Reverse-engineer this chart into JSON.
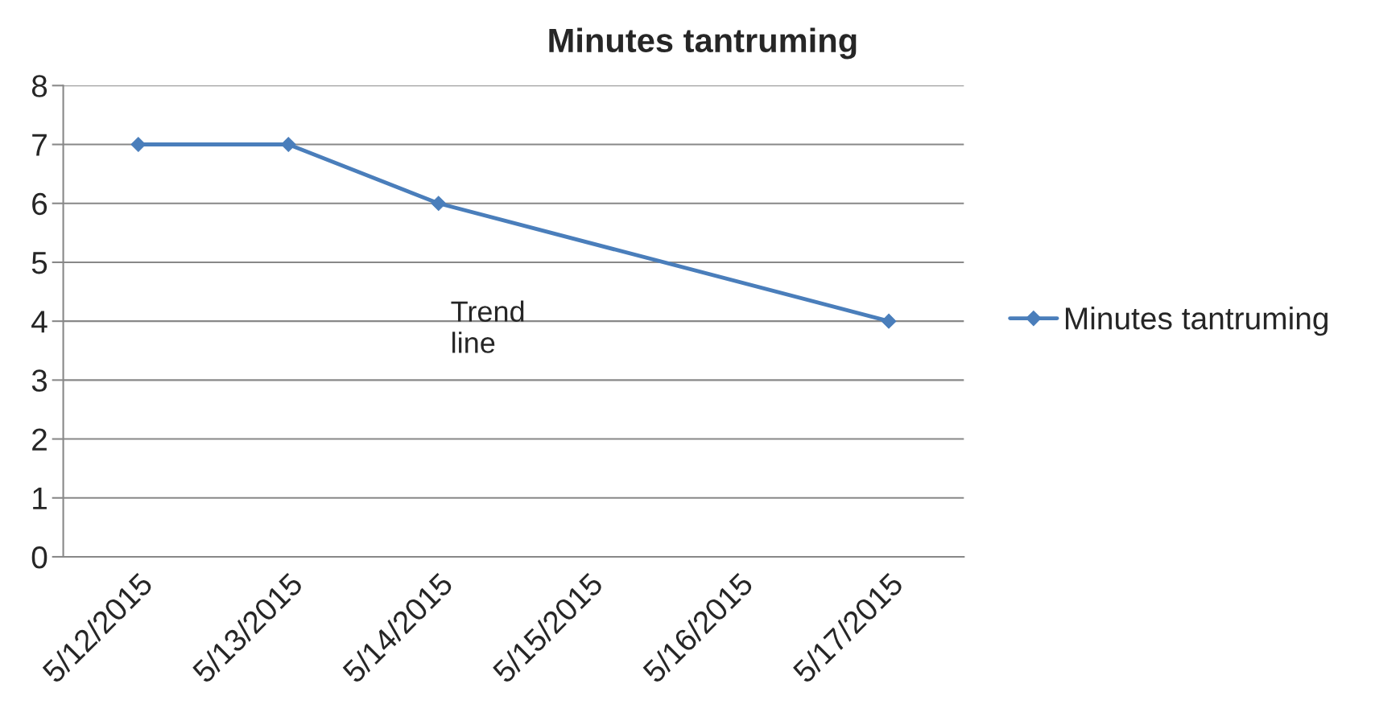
{
  "chart_data": {
    "type": "line",
    "title": "Minutes tantruming",
    "categories": [
      "5/12/2015",
      "5/13/2015",
      "5/14/2015",
      "5/15/2015",
      "5/16/2015",
      "5/17/2015"
    ],
    "series": [
      {
        "name": "Minutes tantruming",
        "color": "#4a7ebb",
        "values": [
          7,
          7,
          6,
          null,
          null,
          4
        ]
      }
    ],
    "ylim": [
      0,
      8
    ],
    "yticks": [
      0,
      1,
      2,
      3,
      4,
      5,
      6,
      7,
      8
    ],
    "grid": "y",
    "legend": "right",
    "marker": "diamond",
    "line_style": "solid",
    "annotations": [
      "Trend\nline"
    ]
  }
}
